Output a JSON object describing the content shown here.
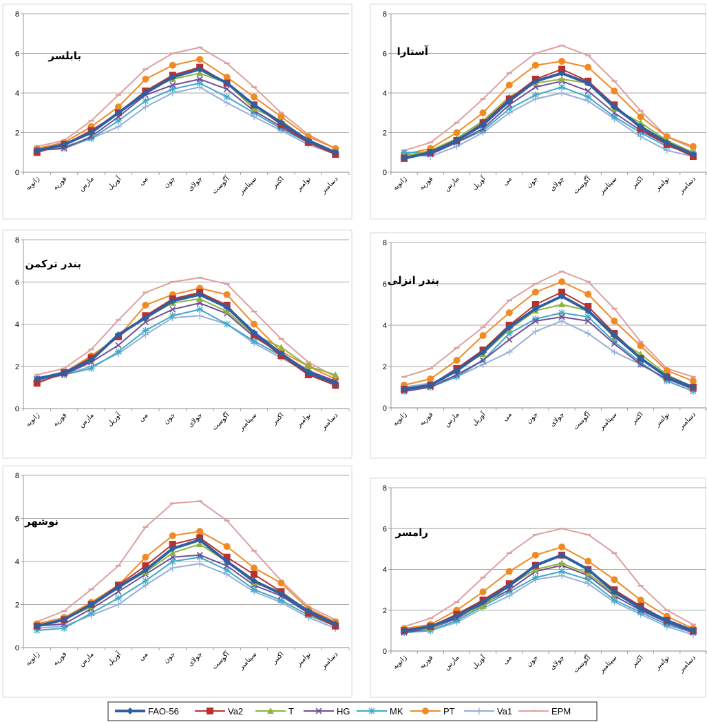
{
  "series_styles": [
    {
      "name": "FAO-56",
      "color": "#2E5FA1",
      "marker": "diamond",
      "width": 4
    },
    {
      "name": "Va2",
      "color": "#B8312F",
      "marker": "square",
      "width": 2
    },
    {
      "name": "T",
      "color": "#8DB43E",
      "marker": "triangle",
      "width": 2
    },
    {
      "name": "HG",
      "color": "#6F4E99",
      "marker": "x",
      "width": 2
    },
    {
      "name": "MK",
      "color": "#3FA9C6",
      "marker": "star",
      "width": 2
    },
    {
      "name": "PT",
      "color": "#F08A24",
      "marker": "circle",
      "width": 2
    },
    {
      "name": "Va1",
      "color": "#95AFD8",
      "marker": "plus",
      "width": 2
    },
    {
      "name": "EPM",
      "color": "#DDA0A0",
      "marker": "dash",
      "width": 2
    }
  ],
  "chart_data": [
    {
      "type": "line",
      "title": "بابلسر",
      "categories": [
        "ژانویه",
        "فوریه",
        "مارس",
        "آوریل",
        "می",
        "جون",
        "جولای",
        "آگوست",
        "سپتامبر",
        "اکتبر",
        "نوامبر",
        "دسامبر"
      ],
      "ylim": [
        0,
        8
      ],
      "yticks": [
        0,
        2,
        4,
        6,
        8
      ],
      "grid": "horizontal",
      "series": [
        {
          "name": "FAO-56",
          "values": [
            1.1,
            1.4,
            2.0,
            3.0,
            4.0,
            4.8,
            5.2,
            4.5,
            3.4,
            2.5,
            1.6,
            1.0
          ]
        },
        {
          "name": "Va2",
          "values": [
            1.0,
            1.4,
            2.1,
            3.0,
            4.1,
            4.9,
            5.3,
            4.5,
            3.4,
            2.4,
            1.5,
            0.9
          ]
        },
        {
          "name": "T",
          "values": [
            1.1,
            1.4,
            2.0,
            3.0,
            4.1,
            4.7,
            5.0,
            4.5,
            3.2,
            2.6,
            1.6,
            1.0
          ]
        },
        {
          "name": "HG",
          "values": [
            1.1,
            1.2,
            1.8,
            2.8,
            3.9,
            4.4,
            4.7,
            4.2,
            3.1,
            2.3,
            1.5,
            1.0
          ]
        },
        {
          "name": "MK",
          "values": [
            1.1,
            1.3,
            1.7,
            2.6,
            3.6,
            4.2,
            4.5,
            3.8,
            3.0,
            2.2,
            1.5,
            1.0
          ]
        },
        {
          "name": "PT",
          "values": [
            1.2,
            1.5,
            2.3,
            3.3,
            4.7,
            5.4,
            5.7,
            4.8,
            3.8,
            2.8,
            1.8,
            1.2
          ]
        },
        {
          "name": "Va1",
          "values": [
            1.2,
            1.2,
            1.7,
            2.3,
            3.3,
            4.0,
            4.3,
            3.5,
            2.8,
            2.1,
            1.4,
            0.9
          ]
        },
        {
          "name": "EPM",
          "values": [
            1.3,
            1.6,
            2.6,
            3.9,
            5.2,
            6.0,
            6.3,
            5.5,
            4.3,
            3.0,
            1.9,
            1.2
          ]
        }
      ]
    },
    {
      "type": "line",
      "title": "آستارا",
      "categories": [
        "ژانویه",
        "فوریه",
        "مارس",
        "آوریل",
        "می",
        "جون",
        "جولای",
        "آگوست",
        "سپتامبر",
        "اکتبر",
        "نوامبر",
        "دسامبر"
      ],
      "ylim": [
        0,
        8
      ],
      "yticks": [
        0,
        2,
        4,
        6,
        8
      ],
      "grid": "horizontal",
      "series": [
        {
          "name": "FAO-56",
          "values": [
            0.7,
            1.0,
            1.6,
            2.4,
            3.6,
            4.6,
            5.0,
            4.5,
            3.3,
            2.3,
            1.5,
            0.9
          ]
        },
        {
          "name": "Va2",
          "values": [
            0.7,
            1.0,
            1.6,
            2.5,
            3.7,
            4.7,
            5.2,
            4.6,
            3.4,
            2.2,
            1.4,
            0.8
          ]
        },
        {
          "name": "T",
          "values": [
            0.8,
            1.1,
            1.7,
            2.6,
            3.8,
            4.5,
            4.7,
            4.5,
            3.2,
            2.5,
            1.6,
            1.0
          ]
        },
        {
          "name": "HG",
          "values": [
            0.8,
            0.9,
            1.5,
            2.2,
            3.4,
            4.3,
            4.6,
            4.1,
            3.0,
            2.1,
            1.4,
            0.9
          ]
        },
        {
          "name": "MK",
          "values": [
            1.0,
            1.0,
            1.5,
            2.1,
            3.2,
            3.9,
            4.3,
            3.8,
            2.8,
            2.0,
            1.3,
            1.0
          ]
        },
        {
          "name": "PT",
          "values": [
            0.9,
            1.2,
            2.0,
            3.0,
            4.4,
            5.4,
            5.6,
            5.3,
            4.1,
            2.8,
            1.8,
            1.3
          ]
        },
        {
          "name": "Va1",
          "values": [
            0.9,
            0.8,
            1.3,
            2.0,
            3.0,
            3.7,
            4.0,
            3.6,
            2.7,
            1.8,
            1.1,
            0.8
          ]
        },
        {
          "name": "EPM",
          "values": [
            1.1,
            1.5,
            2.5,
            3.7,
            5.0,
            6.0,
            6.4,
            5.9,
            4.6,
            3.1,
            1.8,
            1.2
          ]
        }
      ]
    },
    {
      "type": "line",
      "title": "بندر ترکمن",
      "categories": [
        "ژانویه",
        "فوریه",
        "مارس",
        "آوریل",
        "می",
        "جون",
        "جولای",
        "آگوست",
        "سپتامبر",
        "اکتبر",
        "نوامبر",
        "دسامبر"
      ],
      "ylim": [
        0,
        8
      ],
      "yticks": [
        0,
        2,
        4,
        6,
        8
      ],
      "grid": "horizontal",
      "series": [
        {
          "name": "FAO-56",
          "values": [
            1.4,
            1.7,
            2.3,
            3.5,
            4.3,
            5.1,
            5.4,
            4.8,
            3.6,
            2.6,
            1.7,
            1.2
          ]
        },
        {
          "name": "Va2",
          "values": [
            1.2,
            1.7,
            2.4,
            3.4,
            4.4,
            5.2,
            5.5,
            4.9,
            3.5,
            2.5,
            1.6,
            1.1
          ]
        },
        {
          "name": "T",
          "values": [
            1.4,
            1.7,
            2.3,
            3.5,
            4.3,
            5.0,
            5.2,
            4.6,
            3.5,
            2.9,
            2.0,
            1.6
          ]
        },
        {
          "name": "HG",
          "values": [
            1.4,
            1.6,
            2.2,
            3.0,
            4.1,
            4.7,
            5.0,
            4.5,
            3.4,
            2.6,
            1.8,
            1.3
          ]
        },
        {
          "name": "MK",
          "values": [
            1.3,
            1.6,
            1.9,
            2.7,
            3.7,
            4.4,
            4.7,
            4.0,
            3.2,
            2.5,
            1.8,
            1.1
          ]
        },
        {
          "name": "PT",
          "values": [
            1.3,
            1.7,
            2.5,
            3.4,
            4.9,
            5.4,
            5.7,
            5.4,
            4.0,
            2.7,
            2.0,
            1.4
          ]
        },
        {
          "name": "Va1",
          "values": [
            1.5,
            1.6,
            2.0,
            2.6,
            3.5,
            4.3,
            4.4,
            4.0,
            3.1,
            2.4,
            1.7,
            1.1
          ]
        },
        {
          "name": "EPM",
          "values": [
            1.6,
            1.9,
            2.8,
            4.2,
            5.5,
            6.0,
            6.2,
            5.9,
            4.6,
            3.3,
            2.2,
            1.5
          ]
        }
      ]
    },
    {
      "type": "line",
      "title": "بندر انزلی",
      "categories": [
        "ژانویه",
        "فوریه",
        "مارس",
        "آوریل",
        "می",
        "جون",
        "جولای",
        "آگوست",
        "سپتامبر",
        "اکتبر",
        "نوامبر",
        "دسامبر"
      ],
      "ylim": [
        0,
        8
      ],
      "yticks": [
        0,
        2,
        4,
        6,
        8
      ],
      "grid": "horizontal",
      "series": [
        {
          "name": "FAO-56",
          "values": [
            0.9,
            1.1,
            1.8,
            2.7,
            3.9,
            4.8,
            5.4,
            4.7,
            3.5,
            2.4,
            1.5,
            1.0
          ]
        },
        {
          "name": "Va2",
          "values": [
            0.9,
            1.1,
            1.9,
            2.8,
            4.0,
            5.0,
            5.6,
            4.9,
            3.6,
            2.4,
            1.5,
            1.0
          ]
        },
        {
          "name": "T",
          "values": [
            0.9,
            1.1,
            1.9,
            2.6,
            3.8,
            4.7,
            5.0,
            4.7,
            3.4,
            2.6,
            1.6,
            1.0
          ]
        },
        {
          "name": "HG",
          "values": [
            0.8,
            1.0,
            1.6,
            2.3,
            3.3,
            4.2,
            4.4,
            4.2,
            3.1,
            2.1,
            1.4,
            0.9
          ]
        },
        {
          "name": "MK",
          "values": [
            0.8,
            1.0,
            1.5,
            2.3,
            3.6,
            4.3,
            4.6,
            4.4,
            3.2,
            2.2,
            1.3,
            0.8
          ]
        },
        {
          "name": "PT",
          "values": [
            1.1,
            1.4,
            2.3,
            3.5,
            4.6,
            5.6,
            6.1,
            5.5,
            4.2,
            3.0,
            1.8,
            1.3
          ]
        },
        {
          "name": "Va1",
          "values": [
            1.0,
            1.2,
            1.5,
            2.1,
            2.7,
            3.7,
            4.2,
            3.6,
            2.7,
            2.1,
            1.4,
            0.9
          ]
        },
        {
          "name": "EPM",
          "values": [
            1.5,
            1.9,
            2.9,
            3.9,
            5.2,
            6.0,
            6.6,
            6.1,
            4.8,
            3.2,
            1.9,
            1.5
          ]
        }
      ]
    },
    {
      "type": "line",
      "title": "نوشهر",
      "categories": [
        "ژانویه",
        "فوریه",
        "مارس",
        "آوریل",
        "می",
        "جون",
        "جولای",
        "آگوست",
        "سپتامبر",
        "اکتبر",
        "نوامبر",
        "دسامبر"
      ],
      "ylim": [
        0,
        8
      ],
      "yticks": [
        0,
        2,
        4,
        6,
        8
      ],
      "grid": "horizontal",
      "series": [
        {
          "name": "FAO-56",
          "values": [
            1.0,
            1.3,
            2.0,
            2.8,
            3.6,
            4.6,
            5.0,
            4.0,
            3.1,
            2.5,
            1.7,
            1.1
          ]
        },
        {
          "name": "Va2",
          "values": [
            1.0,
            1.3,
            2.0,
            2.9,
            3.8,
            4.8,
            5.1,
            4.2,
            3.4,
            2.6,
            1.6,
            1.0
          ]
        },
        {
          "name": "T",
          "values": [
            1.0,
            1.3,
            1.9,
            2.8,
            3.5,
            4.4,
            4.8,
            4.0,
            3.0,
            2.6,
            1.7,
            1.1
          ]
        },
        {
          "name": "HG",
          "values": [
            1.0,
            1.1,
            1.8,
            2.6,
            3.4,
            4.2,
            4.3,
            3.8,
            2.9,
            2.4,
            1.6,
            1.0
          ]
        },
        {
          "name": "MK",
          "values": [
            0.8,
            0.9,
            1.6,
            2.3,
            3.1,
            4.0,
            4.2,
            3.6,
            2.7,
            2.2,
            1.5,
            1.0
          ]
        },
        {
          "name": "PT",
          "values": [
            1.1,
            1.4,
            2.1,
            2.9,
            4.2,
            5.2,
            5.4,
            4.7,
            3.7,
            3.0,
            1.8,
            1.2
          ]
        },
        {
          "name": "Va1",
          "values": [
            0.9,
            1.0,
            1.5,
            2.0,
            2.9,
            3.7,
            3.9,
            3.4,
            2.6,
            2.1,
            1.4,
            0.9
          ]
        },
        {
          "name": "EPM",
          "values": [
            1.2,
            1.7,
            2.7,
            3.8,
            5.6,
            6.7,
            6.8,
            5.9,
            4.5,
            3.1,
            1.9,
            1.3
          ]
        }
      ]
    },
    {
      "type": "line",
      "title": "رامسر",
      "categories": [
        "ژانویه",
        "فوریه",
        "مارس",
        "آوریل",
        "می",
        "جون",
        "جولای",
        "آگوست",
        "سپتامبر",
        "اکتبر",
        "نوامبر",
        "دسامبر"
      ],
      "ylim": [
        0,
        8
      ],
      "yticks": [
        0,
        2,
        4,
        6,
        8
      ],
      "grid": "horizontal",
      "series": [
        {
          "name": "FAO-56",
          "values": [
            1.0,
            1.2,
            1.7,
            2.4,
            3.2,
            4.2,
            4.7,
            4.0,
            2.9,
            2.1,
            1.5,
            1.0
          ]
        },
        {
          "name": "Va2",
          "values": [
            1.0,
            1.2,
            1.8,
            2.5,
            3.3,
            4.2,
            4.7,
            4.0,
            3.0,
            2.2,
            1.5,
            1.0
          ]
        },
        {
          "name": "T",
          "values": [
            1.0,
            1.1,
            1.7,
            2.2,
            3.2,
            4.0,
            4.3,
            3.8,
            2.8,
            2.2,
            1.5,
            1.0
          ]
        },
        {
          "name": "HG",
          "values": [
            0.9,
            1.1,
            1.6,
            2.3,
            3.0,
            3.9,
            4.2,
            3.7,
            2.7,
            2.0,
            1.4,
            0.9
          ]
        },
        {
          "name": "MK",
          "values": [
            0.9,
            1.0,
            1.5,
            2.2,
            2.9,
            3.6,
            3.9,
            3.5,
            2.5,
            1.9,
            1.3,
            0.9
          ]
        },
        {
          "name": "PT",
          "values": [
            1.1,
            1.3,
            2.0,
            2.9,
            3.9,
            4.7,
            5.1,
            4.4,
            3.5,
            2.5,
            1.7,
            1.1
          ]
        },
        {
          "name": "Va1",
          "values": [
            0.9,
            1.0,
            1.4,
            2.1,
            2.7,
            3.5,
            3.7,
            3.3,
            2.4,
            1.8,
            1.2,
            0.8
          ]
        },
        {
          "name": "EPM",
          "values": [
            1.2,
            1.6,
            2.4,
            3.6,
            4.8,
            5.7,
            6.0,
            5.7,
            4.8,
            3.2,
            2.0,
            1.3
          ]
        }
      ]
    }
  ]
}
